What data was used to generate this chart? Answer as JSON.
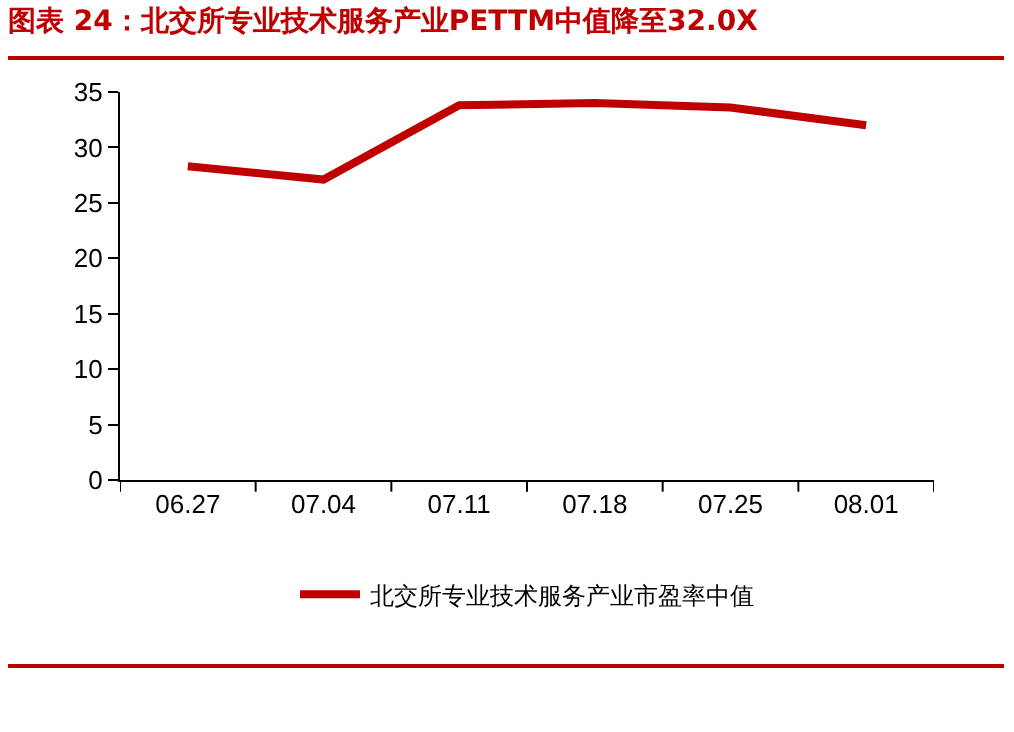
{
  "chart_data": {
    "type": "line",
    "title": "图表 24：北交所专业技术服务产业PETTM中值降至32.0X",
    "categories": [
      "06.27",
      "07.04",
      "07.11",
      "07.18",
      "07.25",
      "08.01"
    ],
    "series": [
      {
        "name": "北交所专业技术服务产业市盈率中值",
        "color": "#c00000",
        "values": [
          28.3,
          27.1,
          33.8,
          34.0,
          33.6,
          32.0
        ]
      }
    ],
    "ylim": [
      0,
      35
    ],
    "yticks": [
      0,
      5,
      10,
      15,
      20,
      25,
      30,
      35
    ],
    "grid": false,
    "legend": "bottom",
    "marker": "none",
    "line_style": "solid"
  }
}
